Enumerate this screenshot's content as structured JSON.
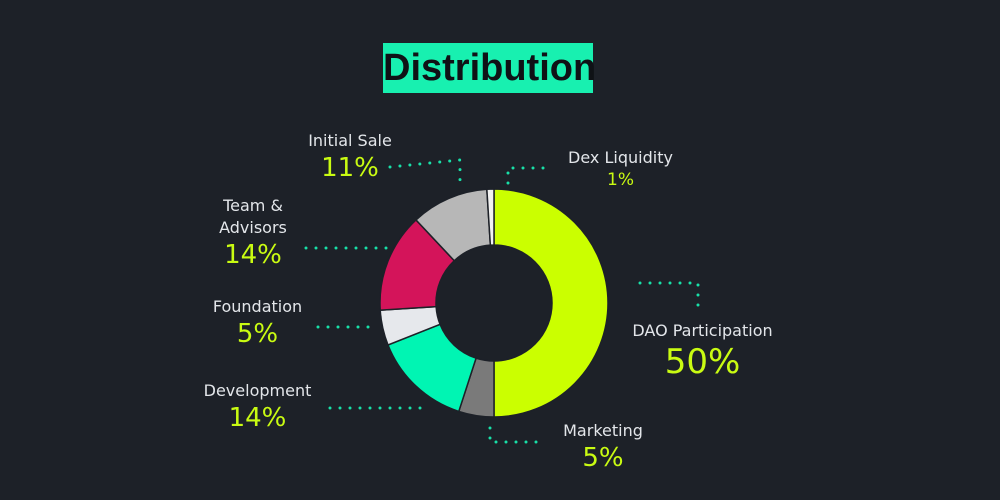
{
  "chart_data": {
    "type": "pie",
    "title": "Distribution",
    "donut": true,
    "slices": [
      {
        "label": "DAO Participation",
        "percent_label": "50%",
        "value": 50,
        "color": "#cbff00"
      },
      {
        "label": "Marketing",
        "percent_label": "5%",
        "value": 5,
        "color": "#7a7a7a"
      },
      {
        "label": "Development",
        "percent_label": "14%",
        "value": 14,
        "color": "#00f5b3"
      },
      {
        "label": "Foundation",
        "percent_label": "5%",
        "value": 5,
        "color": "#e6e8ec"
      },
      {
        "label": "Team &\nAdvisors",
        "percent_label": "14%",
        "value": 14,
        "color": "#d4145a"
      },
      {
        "label": "Initial Sale",
        "percent_label": "11%",
        "value": 11,
        "color": "#b7b7b7"
      },
      {
        "label": "Dex Liquidity",
        "percent_label": "1%",
        "value": 1,
        "color": "#f2f2f2"
      }
    ],
    "colors": {
      "background": "#1d2128",
      "title_bg": "#18f0b0",
      "percent_text": "#c9fb12",
      "leader_dots": "#18e0a8"
    }
  }
}
